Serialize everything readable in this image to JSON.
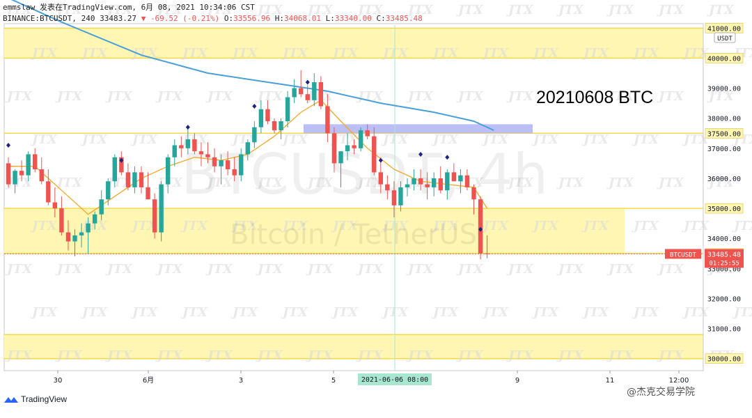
{
  "header": {
    "line1": "emmslaw 发表在TradingView.com, 6月 08, 2021 10:34:06 CST",
    "symbol": "BINANCE:BTCUSDT, 240",
    "last": "33483.27",
    "change": "-69.52 (-0.21%)",
    "o_label": "O:",
    "o": "33556.96",
    "h_label": "H:",
    "h": "34068.01",
    "l_label": "L:",
    "l": "33340.00",
    "c_label": "C:",
    "c": "33485.48"
  },
  "watermark": {
    "symbol": "BTCUSDT, 4h",
    "name": "Bitcoin / TetherUS",
    "tile": "JTX"
  },
  "annotation": "20210608 BTC",
  "currency_tag": "USDT",
  "price_tag": {
    "symbol": "BTCUSDT",
    "price": "33485.48",
    "timer": "01:25:55"
  },
  "crosshair_label": "2021-06-06  08:00",
  "footer": {
    "brand": "TradingView",
    "wechat": "@杰克交易学院"
  },
  "colors": {
    "up": "#26a69a",
    "down": "#ef5350",
    "zone": "#fff6b3",
    "zone_line": "#f5d94a",
    "ma_long": "#4a9fd9",
    "ma_short": "#f5a623",
    "box": "#b0b4f5",
    "diamond": "#1a237e"
  },
  "chart_data": {
    "type": "candlestick",
    "yaxis_ticks": [
      30000,
      31000,
      32000,
      33000,
      33500,
      34000,
      35000,
      36000,
      37000,
      37500,
      38000,
      39000,
      40000,
      41000
    ],
    "yaxis_highlight": [
      "30000.00",
      "33500.00",
      "35000.00",
      "37500.00",
      "40000.00",
      "41000.00"
    ],
    "ylim": [
      29600,
      41100
    ],
    "xaxis_ticks": [
      "30",
      "6月",
      "3",
      "5",
      "9",
      "11",
      "12:00"
    ],
    "zones": [
      {
        "from": 40000,
        "to": 41000
      },
      {
        "from": 33500,
        "to": 35000
      },
      {
        "from": 30000,
        "to": 30800
      }
    ],
    "resistance_box": {
      "from": 37500,
      "to": 37800
    },
    "candles": [
      [
        36500,
        36700,
        35700,
        35800
      ],
      [
        35800,
        36300,
        35500,
        36250
      ],
      [
        36250,
        36600,
        35900,
        36100
      ],
      [
        36100,
        36900,
        35900,
        36800
      ],
      [
        36800,
        37000,
        36200,
        36300
      ],
      [
        36300,
        36700,
        35800,
        35900
      ],
      [
        35900,
        36300,
        35100,
        35200
      ],
      [
        35200,
        35700,
        34700,
        35000
      ],
      [
        35000,
        35400,
        34100,
        34200
      ],
      [
        34200,
        34600,
        33600,
        33900
      ],
      [
        33900,
        34300,
        33400,
        34100
      ],
      [
        34100,
        34500,
        33700,
        34200
      ],
      [
        34200,
        34700,
        33500,
        34500
      ],
      [
        34500,
        34900,
        34300,
        34800
      ],
      [
        34800,
        35600,
        34600,
        35300
      ],
      [
        35300,
        36000,
        35100,
        35900
      ],
      [
        35900,
        36800,
        35700,
        36700
      ],
      [
        36700,
        36900,
        36100,
        36200
      ],
      [
        36200,
        36500,
        35600,
        35700
      ],
      [
        35700,
        36400,
        35500,
        36200
      ],
      [
        36200,
        36400,
        35500,
        35700
      ],
      [
        35700,
        36200,
        35300,
        35300
      ],
      [
        35300,
        35500,
        34000,
        34200
      ],
      [
        34200,
        35900,
        33900,
        35800
      ],
      [
        35800,
        36800,
        35500,
        36700
      ],
      [
        36700,
        37300,
        36400,
        37100
      ],
      [
        37100,
        37400,
        36700,
        37000
      ],
      [
        37000,
        37700,
        36800,
        37300
      ],
      [
        37300,
        37500,
        36800,
        36900
      ],
      [
        36900,
        37200,
        36400,
        36800
      ],
      [
        36800,
        37200,
        36500,
        36700
      ],
      [
        36700,
        37000,
        36200,
        36400
      ],
      [
        36400,
        36800,
        35800,
        36600
      ],
      [
        36600,
        36900,
        36100,
        36300
      ],
      [
        36300,
        36700,
        35900,
        36100
      ],
      [
        36100,
        37000,
        35900,
        36800
      ],
      [
        36800,
        37300,
        36600,
        37200
      ],
      [
        37200,
        37900,
        37000,
        37700
      ],
      [
        37700,
        38600,
        37500,
        38300
      ],
      [
        38300,
        38600,
        37800,
        37900
      ],
      [
        37900,
        38000,
        37500,
        37600
      ],
      [
        37600,
        38000,
        37300,
        37900
      ],
      [
        37900,
        38900,
        37700,
        38700
      ],
      [
        38700,
        39300,
        38500,
        39000
      ],
      [
        39000,
        39600,
        38700,
        38800
      ],
      [
        38800,
        39100,
        38500,
        38600
      ],
      [
        38600,
        39500,
        38400,
        39200
      ],
      [
        39200,
        39400,
        38300,
        38400
      ],
      [
        38400,
        38800,
        37200,
        37500
      ],
      [
        37500,
        37700,
        36200,
        36500
      ],
      [
        36500,
        36900,
        35700,
        36900
      ],
      [
        36900,
        37500,
        36600,
        37100
      ],
      [
        37100,
        37300,
        36800,
        37000
      ],
      [
        37000,
        37700,
        36900,
        37600
      ],
      [
        37600,
        37800,
        37300,
        37400
      ],
      [
        37400,
        37700,
        36100,
        36200
      ],
      [
        36200,
        36700,
        35500,
        35800
      ],
      [
        35800,
        36100,
        35300,
        35600
      ],
      [
        35600,
        35900,
        34700,
        35100
      ],
      [
        35100,
        35900,
        34900,
        35700
      ],
      [
        35700,
        36000,
        35400,
        35800
      ],
      [
        35800,
        36300,
        35600,
        36000
      ],
      [
        36000,
        36300,
        35600,
        35800
      ],
      [
        35800,
        36200,
        35300,
        35700
      ],
      [
        35700,
        36200,
        35400,
        36000
      ],
      [
        36000,
        36400,
        35500,
        35600
      ],
      [
        35600,
        36300,
        35300,
        36200
      ],
      [
        36200,
        36500,
        35900,
        35900
      ],
      [
        35900,
        36300,
        35500,
        36100
      ],
      [
        36100,
        36300,
        35600,
        35700
      ],
      [
        35700,
        35800,
        34800,
        35300
      ],
      [
        35300,
        35400,
        33300,
        33500
      ],
      [
        33500,
        34100,
        33340,
        33485
      ]
    ],
    "ma_long": [
      [
        0,
        42000
      ],
      [
        8,
        41200
      ],
      [
        20,
        40100
      ],
      [
        30,
        39500
      ],
      [
        42,
        39100
      ],
      [
        48,
        38900
      ],
      [
        56,
        38500
      ],
      [
        64,
        38200
      ],
      [
        70,
        37900
      ],
      [
        73,
        37600
      ]
    ],
    "ma_short": [
      [
        0,
        36400
      ],
      [
        4,
        36400
      ],
      [
        8,
        35600
      ],
      [
        12,
        34800
      ],
      [
        16,
        35400
      ],
      [
        20,
        36000
      ],
      [
        24,
        36400
      ],
      [
        28,
        36700
      ],
      [
        32,
        36600
      ],
      [
        36,
        36800
      ],
      [
        40,
        37400
      ],
      [
        44,
        38200
      ],
      [
        47,
        38600
      ],
      [
        50,
        37900
      ],
      [
        54,
        37000
      ],
      [
        58,
        36300
      ],
      [
        62,
        35900
      ],
      [
        66,
        35800
      ],
      [
        70,
        35700
      ],
      [
        72,
        35000
      ]
    ],
    "diamonds": [
      [
        0,
        37100
      ],
      [
        17,
        36600
      ],
      [
        27,
        37700
      ],
      [
        37,
        38400
      ],
      [
        45,
        39200
      ],
      [
        56,
        36600
      ],
      [
        62,
        36800
      ],
      [
        66,
        36700
      ],
      [
        71,
        34300
      ]
    ]
  }
}
